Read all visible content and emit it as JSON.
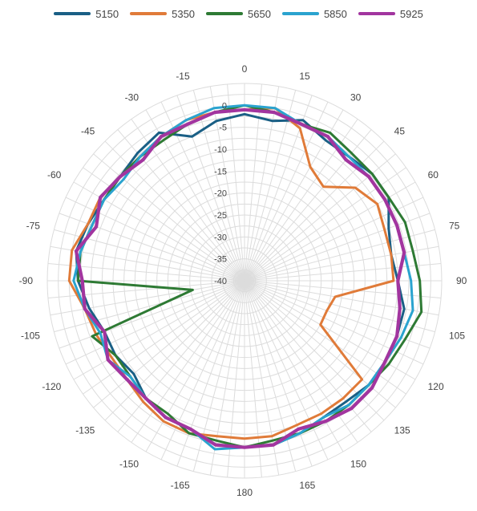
{
  "chart_data": {
    "type": "polar-line",
    "title": "",
    "angle_direction": "clockwise",
    "angle_zero": "top",
    "angle_tick_labels": [
      "0",
      "15",
      "30",
      "45",
      "60",
      "75",
      "90",
      "105",
      "120",
      "135",
      "150",
      "165",
      "180",
      "-165",
      "-150",
      "-135",
      "-120",
      "-105",
      "-90",
      "-75",
      "-60",
      "-45",
      "-30",
      "-15"
    ],
    "angle_tick_values": [
      0,
      15,
      30,
      45,
      60,
      75,
      90,
      105,
      120,
      135,
      150,
      165,
      180,
      -165,
      -150,
      -135,
      -120,
      -105,
      -90,
      -75,
      -60,
      -45,
      -30,
      -15
    ],
    "radial_tick_labels": [
      "0",
      "-5",
      "-10",
      "-15",
      "-20",
      "-25",
      "-30",
      "-35",
      "-40"
    ],
    "radial_tick_values": [
      0,
      -5,
      -10,
      -15,
      -20,
      -25,
      -30,
      -35,
      -40
    ],
    "rlim": [
      -40,
      5
    ],
    "grid": true,
    "legend": "top",
    "colors": {
      "5150": "#1a5f85",
      "5350": "#e07b39",
      "5650": "#2e7a34",
      "5850": "#2aa3cf",
      "5925": "#a2359f"
    },
    "x": [
      -180,
      -170,
      -160,
      -150,
      -140,
      -130,
      -120,
      -110,
      -100,
      -90,
      -80,
      -70,
      -60,
      -50,
      -40,
      -30,
      -20,
      -10,
      0,
      10,
      20,
      30,
      40,
      50,
      60,
      70,
      80,
      90,
      100,
      110,
      120,
      130,
      140,
      150,
      160,
      170
    ],
    "series": [
      {
        "name": "5150",
        "values": [
          -2,
          -2,
          -4,
          -4,
          -5,
          -7,
          -6,
          -6,
          -4,
          -2,
          -1,
          -2,
          -3,
          -3,
          -2,
          -1,
          -5,
          -3,
          -2,
          -3,
          -1,
          -3,
          -3,
          -2,
          -2,
          -5,
          -6,
          -5,
          -3,
          -3,
          -3,
          -3,
          -4,
          -4,
          -3,
          -2
        ]
      },
      {
        "name": "5350",
        "values": [
          -4,
          -4,
          -3,
          -3,
          -4,
          -5,
          -5,
          -4,
          -3,
          0,
          0,
          -2,
          -2,
          -3,
          -3,
          -2,
          -1,
          -1,
          -1,
          0,
          -3,
          -10,
          -12,
          -7,
          -5,
          -6,
          -6,
          -6,
          -19,
          -20,
          -20,
          -5,
          -5,
          -5,
          -5,
          -4
        ]
      },
      {
        "name": "5650",
        "values": [
          -2,
          -3,
          -3,
          -5,
          -5,
          -6,
          -6,
          -3,
          -28,
          -2,
          -2,
          -3,
          -3,
          -3,
          -3,
          -3,
          -2,
          -1,
          0,
          -1,
          -2,
          -1,
          -2,
          -2,
          -2,
          -1,
          -1,
          0,
          1,
          -1,
          -2,
          -3,
          -3,
          -3,
          -3,
          -3
        ]
      },
      {
        "name": "5850",
        "values": [
          -2,
          -1,
          -4,
          -4,
          -5,
          -6,
          -4,
          -5,
          -3,
          -1,
          -2,
          -3,
          -3,
          -4,
          -3,
          -2,
          -1,
          0,
          0,
          0,
          -2,
          -2,
          -3,
          -3,
          -3,
          -3,
          -3,
          -2,
          -1,
          -2,
          -3,
          -3,
          -3,
          -4,
          -3,
          -2
        ]
      },
      {
        "name": "5925",
        "values": [
          -2,
          -2,
          -4,
          -4,
          -5,
          -5,
          -4,
          -6,
          -3,
          -3,
          -1,
          -4,
          -2,
          -3,
          -4,
          -2,
          -2,
          -1,
          -1,
          -1,
          -2,
          -2,
          -4,
          -3,
          -3,
          -3,
          -3,
          -5,
          -4,
          -3,
          -3,
          -2,
          -2,
          -3,
          -4,
          -2
        ]
      }
    ]
  }
}
